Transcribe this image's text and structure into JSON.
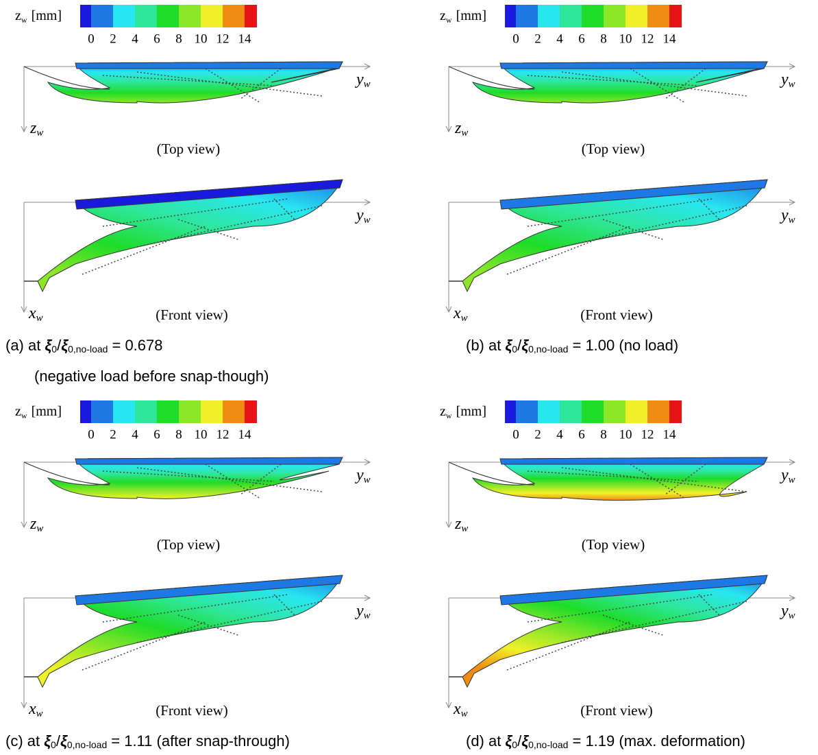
{
  "panels": [
    {
      "colorbar": {
        "symbol": "z",
        "symbol_sub": "w",
        "unit": "[mm]",
        "ticks": [
          0,
          2,
          4,
          6,
          8,
          10,
          12,
          14
        ],
        "colors": [
          "#1a1adc",
          "#1e78e6",
          "#28e6f0",
          "#2ee69a",
          "#1edc28",
          "#8ce628",
          "#f0f028",
          "#f08c14",
          "#e61414"
        ]
      },
      "y_axis": {
        "symbol": "y",
        "sub": "w"
      },
      "z_axis": {
        "symbol": "z",
        "sub": "w"
      },
      "x_axis": {
        "symbol": "x",
        "sub": "w"
      },
      "top_label": "(Top view)",
      "front_label": "(Front view)",
      "caption": {
        "label": "(a) at",
        "symbol": "ξ",
        "sub": "0",
        "sep": "/",
        "sub2": "0,no-load",
        "rest": "= 0.678",
        "note": "(negative load before snap-though)"
      }
    },
    {
      "colorbar": {
        "symbol": "z",
        "symbol_sub": "w",
        "unit": "[mm]",
        "ticks": [
          0,
          2,
          4,
          6,
          8,
          10,
          12,
          14
        ],
        "colors": [
          "#1a1adc",
          "#1e78e6",
          "#28e6f0",
          "#2ee69a",
          "#1edc28",
          "#8ce628",
          "#f0f028",
          "#f08c14",
          "#e61414"
        ]
      },
      "y_axis": {
        "symbol": "y",
        "sub": "w"
      },
      "z_axis": {
        "symbol": "z",
        "sub": "w"
      },
      "x_axis": {
        "symbol": "x",
        "sub": "w"
      },
      "top_label": "(Top view)",
      "front_label": "(Front view)",
      "caption": {
        "label": "(b) at",
        "symbol": "ξ",
        "sub": "0",
        "sep": "/",
        "sub2": "0,no-load",
        "rest": "= 1.00 (no load)"
      }
    },
    {
      "colorbar": {
        "symbol": "z",
        "symbol_sub": "w",
        "unit": "[mm]",
        "ticks": [
          0,
          2,
          4,
          6,
          8,
          10,
          12,
          14
        ],
        "colors": [
          "#1a1adc",
          "#1e78e6",
          "#28e6f0",
          "#2ee69a",
          "#1edc28",
          "#8ce628",
          "#f0f028",
          "#f08c14",
          "#e61414"
        ]
      },
      "y_axis": {
        "symbol": "y",
        "sub": "w"
      },
      "z_axis": {
        "symbol": "z",
        "sub": "w"
      },
      "x_axis": {
        "symbol": "x",
        "sub": "w"
      },
      "top_label": "(Top view)",
      "front_label": "(Front view)",
      "caption": {
        "label": "(c) at",
        "symbol": "ξ",
        "sub": "0",
        "sep": "/",
        "sub2": "0,no-load",
        "rest": "= 1.11 (after snap-through)"
      }
    },
    {
      "colorbar": {
        "symbol": "z",
        "symbol_sub": "w",
        "unit": "[mm]",
        "ticks": [
          0,
          2,
          4,
          6,
          8,
          10,
          12,
          14
        ],
        "colors": [
          "#1a1adc",
          "#1e78e6",
          "#28e6f0",
          "#2ee69a",
          "#1edc28",
          "#8ce628",
          "#f0f028",
          "#f08c14",
          "#e61414"
        ]
      },
      "y_axis": {
        "symbol": "y",
        "sub": "w"
      },
      "z_axis": {
        "symbol": "z",
        "sub": "w"
      },
      "x_axis": {
        "symbol": "x",
        "sub": "w"
      },
      "top_label": "(Top view)",
      "front_label": "(Front view)",
      "caption": {
        "label": "(d) at",
        "symbol": "ξ",
        "sub": "0",
        "sep": "/",
        "sub2": "0,no-load",
        "rest": "= 1.19 (max. deformation)"
      }
    }
  ]
}
